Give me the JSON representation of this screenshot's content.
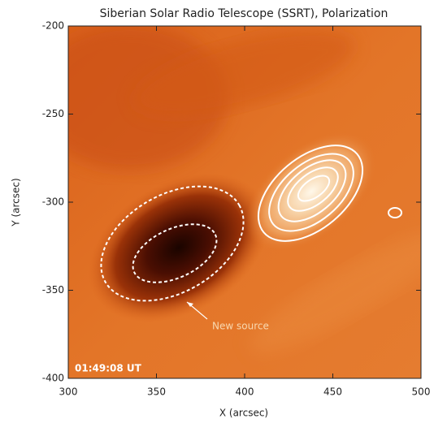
{
  "chart_data": {
    "type": "image",
    "title": "Siberian Solar Radio Telescope (SSRT), Polarization",
    "xlabel": "X (arcsec)",
    "ylabel": "Y (arcsec)",
    "xlim": [
      300,
      500
    ],
    "ylim": [
      -400,
      -200
    ],
    "xticks": [
      300,
      350,
      400,
      450,
      500
    ],
    "yticks": [
      -200,
      -250,
      -300,
      -350,
      -400
    ],
    "annotations": [
      "New source",
      "01:49:08 UT"
    ]
  }
}
